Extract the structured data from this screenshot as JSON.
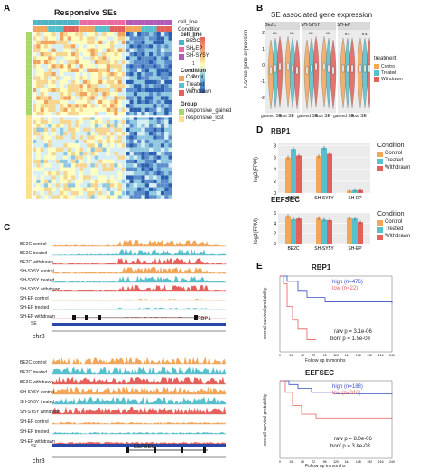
{
  "panel_labels": {
    "a": "A",
    "b": "B",
    "c": "C",
    "d": "D",
    "e": "E"
  },
  "panel_a": {
    "title": "Responsive SEs",
    "row_cell_line": "cell_line",
    "row_condition": "Condition",
    "legend": {
      "colorbar_ticks": [
        "3",
        "2",
        "1",
        "0",
        "-1"
      ],
      "cell_line_title": "cell_line",
      "cell_lines": [
        {
          "label": "BE2C",
          "color": "#4fb3c6"
        },
        {
          "label": "SH-EP",
          "color": "#e96aa0"
        },
        {
          "label": "SH-SY5Y",
          "color": "#b15ab8"
        }
      ],
      "condition_title": "Condition",
      "conditions": [
        {
          "label": "Control",
          "color": "#f2a65a"
        },
        {
          "label": "Treated",
          "color": "#56c0cd"
        },
        {
          "label": "Withdrawn",
          "color": "#e4605a"
        }
      ],
      "group_title": "Group",
      "groups": [
        {
          "label": "responsive_gained",
          "color": "#a6d96a"
        },
        {
          "label": "responsive_lost",
          "color": "#fee08b"
        }
      ]
    }
  },
  "panel_b": {
    "title": "SE associated gene expression",
    "ylabel": "z-score gene expression",
    "facets": [
      "BE2C",
      "SH-SY5Y",
      "SH-EP"
    ],
    "xticks": [
      "gained SE",
      "lost SE"
    ],
    "yticks": [
      "2",
      "1",
      "0",
      "-1",
      "-2"
    ],
    "legend_title": "treatment",
    "legend": [
      {
        "label": "Control",
        "color": "#f2a65a"
      },
      {
        "label": "Treated",
        "color": "#56c0cd"
      },
      {
        "label": "Withdrawn",
        "color": "#e4605a"
      }
    ]
  },
  "panel_c": {
    "top_tracks": [
      "BE2C control",
      "BE2C treated",
      "BE2C withdrawn",
      "SH-SY5Y control",
      "SH-SY5Y treated",
      "SH-SY5Y withdrawn",
      "SH-EP control",
      "SH-EP treated",
      "SH-EP withdrawn"
    ],
    "top_gene": "RBP1",
    "bottom_tracks": [
      "BE2C control",
      "BE2C treated",
      "BE2C withdrawn",
      "SH-SY5Y control",
      "SH-SY5Y treated",
      "SH-SY5Y withdrawn",
      "SH-EP control",
      "SH-EP treated",
      "SH-EP withdrawn"
    ],
    "bottom_gene": "EEFSEC",
    "se_label": "SE",
    "chrom": "chr3"
  },
  "panel_d": {
    "ylabel": "log2(FPM)",
    "legend_title": "Condition",
    "legend": [
      {
        "label": "Control",
        "color": "#f2a65a"
      },
      {
        "label": "Treated",
        "color": "#56c0cd"
      },
      {
        "label": "Withdrawn",
        "color": "#e4605a"
      }
    ],
    "charts": [
      {
        "gene": "RBP1",
        "categories": [
          "BE2C",
          "SH-SY5Y",
          "SH-EP"
        ],
        "series": [
          {
            "name": "Control",
            "values": [
              6.0,
              6.2,
              0.4
            ]
          },
          {
            "name": "Treated",
            "values": [
              7.4,
              7.6,
              0.5
            ]
          },
          {
            "name": "Withdrawn",
            "values": [
              6.3,
              6.6,
              0.5
            ]
          }
        ],
        "yticks": [
          "8",
          "6",
          "4",
          "2",
          "0"
        ],
        "ylim": [
          0,
          8.5
        ]
      },
      {
        "gene": "EEFSEC",
        "categories": [
          "BE2C",
          "SH-SY5Y",
          "SH-EP"
        ],
        "series": [
          {
            "name": "Control",
            "values": [
              5.4,
              5.0,
              5.0
            ]
          },
          {
            "name": "Treated",
            "values": [
              4.8,
              4.7,
              4.9
            ]
          },
          {
            "name": "Withdrawn",
            "values": [
              4.9,
              4.6,
              4.2
            ]
          }
        ],
        "yticks": [
          "6",
          "4",
          "2",
          "0"
        ],
        "ylim": [
          0,
          6
        ]
      }
    ]
  },
  "panel_e": {
    "ylabel": "overall survival probability",
    "xlabel": "Follow up in months",
    "xticks": [
      "0",
      "24",
      "48",
      "72",
      "96",
      "120",
      "144",
      "168",
      "192",
      "216",
      "240"
    ],
    "plots": [
      {
        "title": "RBP1",
        "legend": [
          {
            "label": "high",
            "n": "(n=476)",
            "color": "#3a4fc4"
          },
          {
            "label": "low",
            "n": "(n=22)",
            "color": "#e4605a"
          }
        ],
        "raw_p": "raw p = 3.1e-06",
        "bonf_p": "bonf p = 1.5e-03"
      },
      {
        "title": "EEFSEC",
        "legend": [
          {
            "label": "high",
            "n": "(n=188)",
            "color": "#3a4fc4"
          },
          {
            "label": "low",
            "n": "(n=310)",
            "color": "#e4605a"
          }
        ],
        "raw_p": "raw p = 8.0e-06",
        "bonf_p": "bonf p = 3.8e-03"
      }
    ]
  }
}
